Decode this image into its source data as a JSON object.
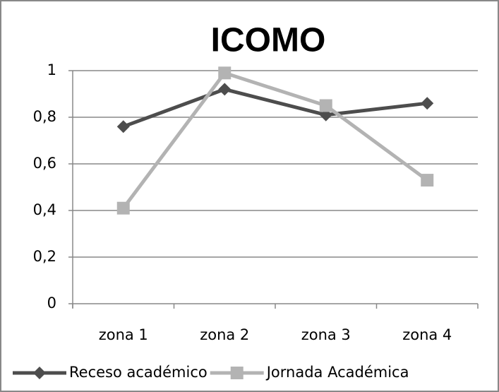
{
  "chart_data": {
    "type": "line",
    "title": "ICOMO",
    "categories": [
      "zona 1",
      "zona 2",
      "zona 3",
      "zona 4"
    ],
    "series": [
      {
        "name": "Receso académico",
        "color": "#4d4d4d",
        "marker": "diamond",
        "values": [
          0.76,
          0.92,
          0.81,
          0.86
        ]
      },
      {
        "name": "Jornada Académica",
        "color": "#b3b3b3",
        "marker": "square",
        "values": [
          0.41,
          0.99,
          0.85,
          0.53
        ]
      }
    ],
    "ylim": [
      0,
      1
    ],
    "yticks": [
      0,
      {
        "value": 0.2,
        "label": "0,2"
      },
      {
        "value": 0.4,
        "label": "0,4"
      },
      {
        "value": 0.6,
        "label": "0,6"
      },
      {
        "value": 0.8,
        "label": "0,8"
      },
      1
    ],
    "grid": true,
    "legend": "bottom"
  }
}
